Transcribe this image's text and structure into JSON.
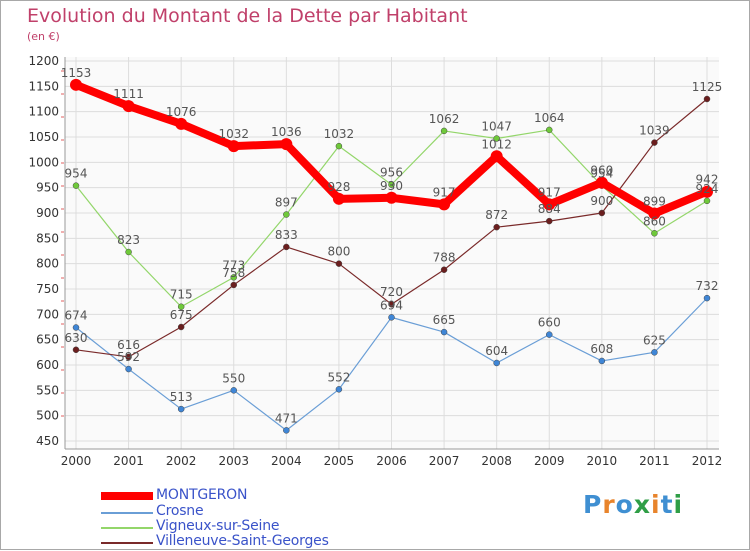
{
  "title": "Evolution du Montant de la Dette par Habitant",
  "subtitle": "(en €)",
  "logo": {
    "text": "Proxiti",
    "letters": [
      {
        "ch": "P",
        "color": "#3f8fd2"
      },
      {
        "ch": "r",
        "color": "#e8842c"
      },
      {
        "ch": "o",
        "color": "#3f8fd2"
      },
      {
        "ch": "x",
        "color": "#2f9e46"
      },
      {
        "ch": "i",
        "color": "#e8842c"
      },
      {
        "ch": "t",
        "color": "#3f8fd2"
      },
      {
        "ch": "i",
        "color": "#2f9e46"
      }
    ]
  },
  "chart_data": {
    "type": "line",
    "title": "Evolution du Montant de la Dette par Habitant",
    "subtitle": "(en €)",
    "x": [
      "2000",
      "2001",
      "2002",
      "2003",
      "2004",
      "2005",
      "2006",
      "2007",
      "2008",
      "2009",
      "2010",
      "2011",
      "2012"
    ],
    "ylim": [
      450,
      1200
    ],
    "yticks": [
      450,
      500,
      550,
      600,
      650,
      700,
      750,
      800,
      850,
      900,
      950,
      1000,
      1050,
      1100,
      1150,
      1200
    ],
    "grid": true,
    "legend_position": "bottom-left",
    "series": [
      {
        "name": "MONTGERON",
        "color": "#ff0000",
        "width": 8,
        "markerColor": "#ff0000",
        "values": [
          1153,
          1111,
          1076,
          1032,
          1036,
          928,
          930,
          917,
          1012,
          917,
          960,
          899,
          942
        ]
      },
      {
        "name": "Crosne",
        "color": "#6a9ed6",
        "width": 1.2,
        "markerColor": "#3f86d6",
        "values": [
          674,
          592,
          513,
          550,
          471,
          552,
          694,
          665,
          604,
          660,
          608,
          625,
          732
        ]
      },
      {
        "name": "Vigneux-sur-Seine",
        "color": "#93d66a",
        "width": 1.2,
        "markerColor": "#6fc93a",
        "values": [
          954,
          823,
          715,
          773,
          897,
          1032,
          956,
          1062,
          1047,
          1064,
          954,
          860,
          924
        ]
      },
      {
        "name": "Villeneuve-Saint-Georges",
        "color": "#7a2a2a",
        "width": 1.2,
        "markerColor": "#6b1e1e",
        "values": [
          630,
          616,
          675,
          758,
          833,
          800,
          720,
          788,
          872,
          884,
          900,
          1039,
          1125
        ]
      }
    ]
  }
}
